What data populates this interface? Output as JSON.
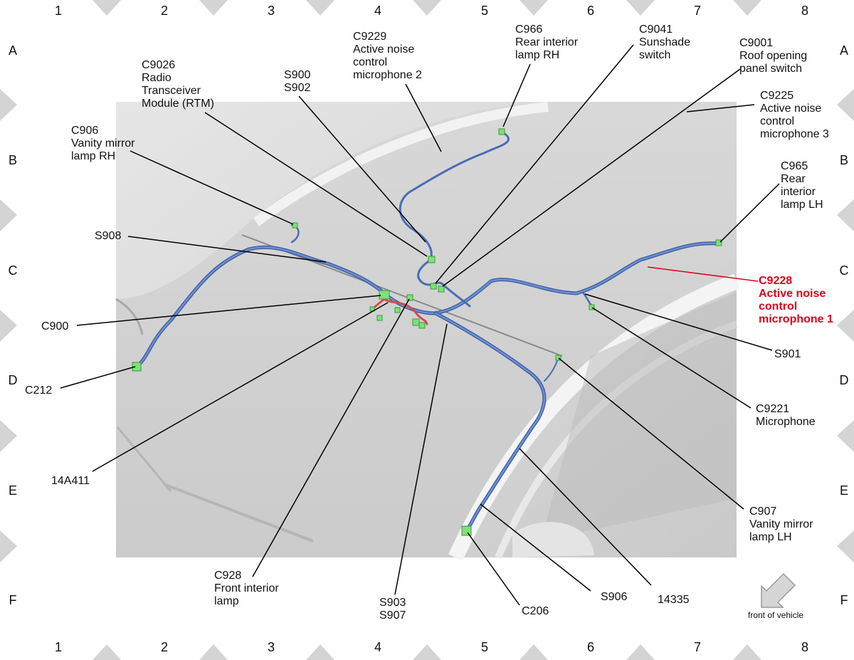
{
  "grid": {
    "columns": [
      "1",
      "2",
      "3",
      "4",
      "5",
      "6",
      "7",
      "8"
    ],
    "rows": [
      "A",
      "B",
      "C",
      "D",
      "E",
      "F"
    ]
  },
  "labels": {
    "c9229": "C9229\nActive noise\ncontrol\nmicrophone 2",
    "c966": "C966\nRear interior\nlamp RH",
    "c9041": "C9041\nSunshade\nswitch",
    "c9001": "C9001\nRoof opening\npanel switch",
    "c9225": "C9225\nActive noise\ncontrol\nmicrophone 3",
    "c9026": "C9026\nRadio\nTransceiver\nModule (RTM)",
    "s900": "S900\nS902",
    "c906": "C906\nVanity mirror\nlamp RH",
    "c965": "C965\nRear\ninterior\nlamp LH",
    "s908": "S908",
    "c9228": "C9228\nActive noise\ncontrol\nmicrophone 1",
    "c900": "C900",
    "s901": "S901",
    "c212": "C212",
    "c9221": "C9221\nMicrophone",
    "a14a411": "14A411",
    "c907": "C907\nVanity mirror\nlamp LH",
    "c928": "C928\nFront interior\nlamp",
    "s903": "S903\nS907",
    "c206": "C206",
    "s906": "S906",
    "p14335": "14335"
  },
  "front_of_vehicle": "front of vehicle",
  "colors": {
    "wire": "#5b7fc4",
    "wire_dark": "#3b5aa0",
    "connector": "#7ee07a",
    "highlight": "#e0001b",
    "red_wire": "#e05050",
    "marker": "#d4d4d4"
  }
}
